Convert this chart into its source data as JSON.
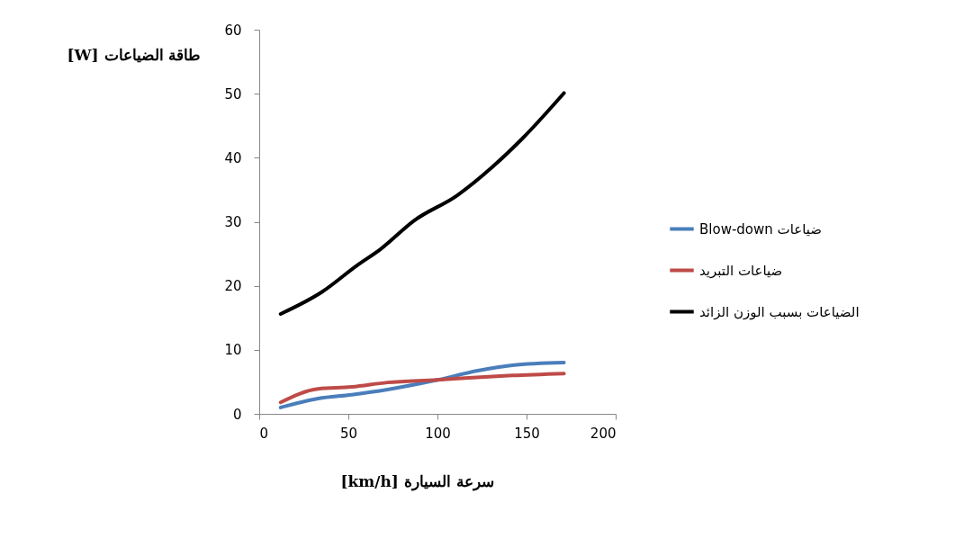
{
  "chart_data": {
    "type": "line",
    "xlabel": "[km/h] سرعة السيارة",
    "ylabel": "[W] طاقة الضياعات",
    "xlim": [
      0,
      200
    ],
    "xticks": [
      0,
      50,
      100,
      150,
      200
    ],
    "ylim": [
      0,
      60
    ],
    "yticks": [
      0,
      10,
      20,
      30,
      40,
      50,
      60
    ],
    "grid": false,
    "legend": "right",
    "marker": "none",
    "line_style": "solid",
    "series": [
      {
        "name": "Blow-down ضياعات",
        "color": "#4a7ebb",
        "x": [
          12,
          33,
          52,
          72,
          100,
          122,
          142,
          171
        ],
        "values": [
          1.0,
          2.4,
          3.0,
          3.8,
          5.3,
          6.7,
          7.6,
          8.0
        ]
      },
      {
        "name": "ضياعات التبريد",
        "color": "#be4b48",
        "x": [
          12,
          33,
          52,
          72,
          100,
          122,
          142,
          171
        ],
        "values": [
          1.8,
          3.9,
          4.2,
          4.9,
          5.3,
          5.7,
          6.0,
          6.3
        ]
      },
      {
        "name": "الضياعات بسبب الوزن الزائد",
        "color": "#000000",
        "x": [
          12,
          35,
          55,
          68,
          87,
          111,
          131,
          148,
          171
        ],
        "values": [
          15.6,
          19.0,
          23.2,
          25.7,
          30.2,
          34.1,
          38.6,
          43.1,
          50.1
        ]
      }
    ]
  }
}
